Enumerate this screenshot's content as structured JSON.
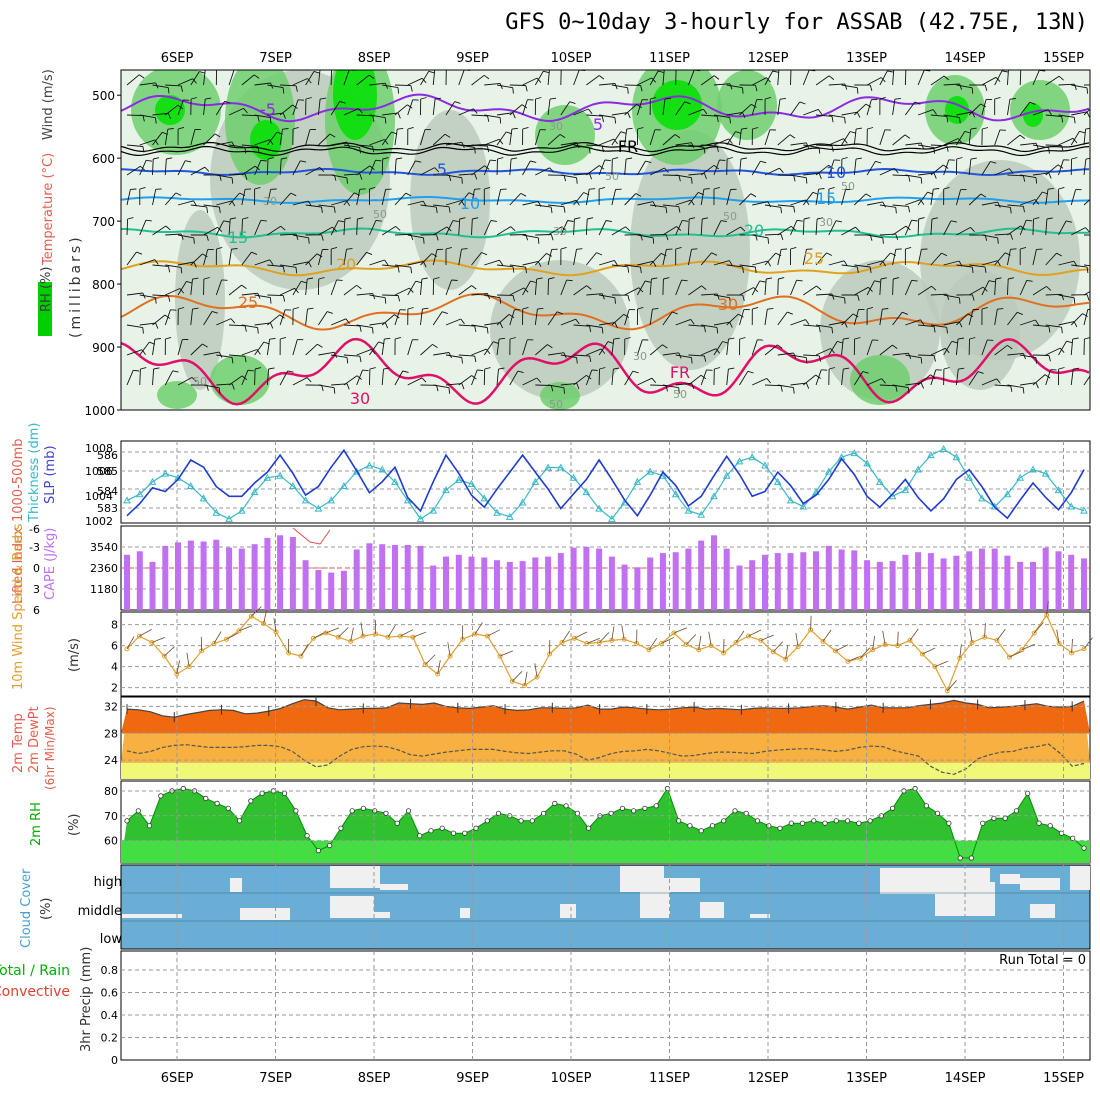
{
  "title": "GFS 0~10day 3-hourly for ASSAB (42.75E, 13N)",
  "date_labels": [
    "6SEP",
    "7SEP",
    "8SEP",
    "9SEP",
    "10SEP",
    "11SEP",
    "12SEP",
    "13SEP",
    "14SEP",
    "15SEP"
  ],
  "colors": {
    "rh_green_dark": "#00e000",
    "rh_green": "#6fcf6f",
    "rh_green_light": "#e8f3e8",
    "rh_grey": "#bccabc",
    "temp_purple": "#8a2be2",
    "temp_blue": "#2255dd",
    "temp_cyan": "#1ea0f0",
    "temp_teal": "#20c090",
    "temp_orange": "#e0a020",
    "temp_orange_dark": "#e07020",
    "temp_magenta": "#e0106a",
    "slp_blue": "#1e3cd0",
    "thickness_cyan": "#38b8c8",
    "cape_purple": "#c070f0",
    "wind_orange": "#e0a030",
    "temp_fill": "#f06810",
    "dewpt_fill": "#f8b040",
    "low_fill": "#f0f878",
    "rh2m_green": "#00d000",
    "cloud_blue": "#6aaed6",
    "cloud_white": "#f0f0f0"
  },
  "chart_data": [
    {
      "type": "heatmap",
      "name_labels": {
        "rh": "RH (%)",
        "temperature": "Temperature (°C)",
        "wind": "Wind (m/s)",
        "unit": "(millibars)"
      },
      "yticks": [
        500,
        600,
        700,
        800,
        900,
        1000
      ],
      "isotherm_labels": [
        "-5",
        "5",
        "5",
        "10",
        "10",
        "15",
        "15",
        "20",
        "20",
        "25",
        "25",
        "30",
        "30",
        "FR",
        "FR"
      ],
      "rh_labels": [
        "50",
        "30",
        "30",
        "50",
        "50",
        "30",
        "30",
        "50",
        "50",
        "50",
        "50",
        "30"
      ]
    },
    {
      "type": "line",
      "name_labels": {
        "thickness": "Thickness (dm)",
        "thickness_top": "1000-500mb",
        "slp": "SLP (mb)"
      },
      "left_ticks": [
        "586",
        "585",
        "584",
        "583"
      ],
      "right_ticks": [
        "1008",
        "1006",
        "1004",
        "1002"
      ],
      "thickness": [
        583.9,
        584.2,
        584.8,
        585.2,
        585.0,
        584.6,
        584.0,
        583.3,
        583.0,
        583.4,
        584.3,
        585.0,
        585.1,
        584.6,
        583.9,
        583.5,
        583.9,
        584.6,
        585.3,
        585.6,
        585.4,
        584.8,
        583.9,
        583.0,
        583.4,
        584.4,
        584.9,
        584.7,
        584.0,
        583.3,
        583.1,
        583.8,
        584.8,
        585.5,
        585.5,
        585.0,
        584.3,
        583.5,
        583.0,
        583.8,
        584.8,
        585.3,
        585.1,
        584.2,
        583.4,
        583.2,
        584.1,
        585.1,
        585.8,
        586.0,
        585.6,
        584.8,
        583.9,
        583.6,
        584.3,
        585.3,
        586.0,
        586.2,
        585.7,
        584.8,
        584.1,
        584.4,
        585.4,
        586.1,
        586.4,
        586.0,
        585.0,
        584.0,
        583.6,
        584.2,
        585.0,
        585.4,
        585.2,
        584.4,
        583.6,
        583.4
      ],
      "slp": [
        1002.6,
        1003.6,
        1004.9,
        1004.6,
        1005.6,
        1007.2,
        1006.6,
        1005.0,
        1004.2,
        1004.2,
        1005.3,
        1006.2,
        1007.6,
        1006.1,
        1004.3,
        1005.0,
        1006.6,
        1008.0,
        1006.3,
        1004.5,
        1005.4,
        1006.6,
        1004.1,
        1003.0,
        1005.4,
        1007.6,
        1006.1,
        1004.3,
        1003.3,
        1004.8,
        1006.2,
        1007.6,
        1006.2,
        1004.8,
        1003.2,
        1004.4,
        1005.6,
        1007.2,
        1005.6,
        1003.9,
        1002.6,
        1004.3,
        1006.2,
        1005.1,
        1003.4,
        1004.2,
        1005.9,
        1007.5,
        1006.0,
        1004.2,
        1004.6,
        1006.2,
        1005.1,
        1003.6,
        1004.3,
        1005.6,
        1007.3,
        1006.0,
        1004.2,
        1003.3,
        1004.4,
        1005.6,
        1004.1,
        1003.0,
        1004.0,
        1005.6,
        1006.4,
        1005.0,
        1003.3,
        1002.4,
        1003.9,
        1005.3,
        1004.1,
        1003.1,
        1004.5,
        1006.4
      ]
    },
    {
      "type": "bar",
      "name_labels": {
        "li": "Lifted Index",
        "cape": "CAPE (J/kg)"
      },
      "left_ticks": [
        "-6",
        "-3",
        "0",
        "3",
        "6"
      ],
      "right_ticks": [
        "3540",
        "2360",
        "1180"
      ],
      "cape": [
        3100,
        3300,
        2700,
        3600,
        3800,
        3900,
        3850,
        3950,
        3500,
        3450,
        3700,
        4050,
        4200,
        4100,
        2800,
        2250,
        2100,
        2200,
        3400,
        3750,
        3700,
        3650,
        3650,
        3600,
        2500,
        3000,
        3100,
        3000,
        2950,
        2800,
        2700,
        2750,
        2950,
        3000,
        3200,
        3500,
        3550,
        3450,
        3000,
        2550,
        2400,
        2950,
        3200,
        3250,
        3450,
        3900,
        4200,
        3450,
        2500,
        2800,
        3100,
        3200,
        3200,
        3250,
        3300,
        3600,
        3400,
        3350,
        2800,
        2700,
        2750,
        3100,
        3250,
        3200,
        2900,
        3050,
        3300,
        3450,
        3450,
        3050,
        2700,
        2700,
        3500,
        3300,
        3100,
        2900
      ]
    },
    {
      "type": "line",
      "name_labels": {
        "wind": "10m Wind Speed & Barbs",
        "unit": "(m/s)"
      },
      "yticks": [
        2,
        4,
        6,
        8
      ],
      "speed": [
        5.7,
        6.9,
        6.3,
        5.0,
        3.3,
        4.0,
        5.5,
        6.2,
        6.6,
        7.4,
        8.8,
        8.1,
        7.3,
        5.3,
        5.0,
        6.7,
        7.2,
        6.8,
        6.4,
        6.9,
        7.1,
        6.8,
        6.9,
        6.8,
        4.2,
        3.3,
        5.0,
        6.6,
        7.1,
        6.9,
        5.0,
        2.6,
        2.2,
        3.0,
        5.2,
        6.3,
        6.7,
        6.2,
        6.3,
        6.5,
        6.6,
        6.2,
        5.6,
        6.2,
        7.2,
        6.1,
        5.6,
        6.0,
        5.3,
        6.3,
        6.9,
        6.5,
        5.4,
        4.7,
        5.9,
        7.5,
        6.4,
        5.5,
        4.5,
        4.8,
        5.6,
        6.1,
        6.0,
        6.5,
        5.2,
        4.0,
        1.7,
        4.8,
        6.3,
        6.8,
        6.5,
        4.9,
        5.6,
        7.2,
        8.9,
        6.2,
        5.3,
        5.7
      ]
    },
    {
      "type": "area",
      "name_labels": {
        "temp": "2m Temp",
        "dewpt": "2m DewPt",
        "minmax": "(6hr Min/Max)"
      },
      "yticks": [
        24,
        28,
        32
      ],
      "temp": [
        31.6,
        31.5,
        31.2,
        30.6,
        30.4,
        30.8,
        31.1,
        31.4,
        31.5,
        31.4,
        30.9,
        31.0,
        31.3,
        31.7,
        32.4,
        33.0,
        32.8,
        31.8,
        31.5,
        31.6,
        31.7,
        31.7,
        31.8,
        32.5,
        32.4,
        32.3,
        32.5,
        32.0,
        31.8,
        31.7,
        31.9,
        32.1,
        31.6,
        31.4,
        31.5,
        31.8,
        31.8,
        31.7,
        31.8,
        32.2,
        31.6,
        31.6,
        31.9,
        31.8,
        31.6,
        31.5,
        31.6,
        31.8,
        31.9,
        31.6,
        31.7,
        31.6,
        31.5,
        31.7,
        31.8,
        31.7,
        31.7,
        31.8,
        32.0,
        32.1,
        31.9,
        31.6,
        31.9,
        32.2,
        31.8,
        31.8,
        31.8,
        32.1,
        32.3,
        32.5,
        32.9,
        32.5,
        32.3,
        31.8,
        31.9,
        32.0,
        32.2,
        32.4,
        32.0,
        31.9,
        32.0,
        32.8
      ],
      "dewpt": [
        25.4,
        25.0,
        25.3,
        25.9,
        26.2,
        26.3,
        26.1,
        25.9,
        25.9,
        25.9,
        26.0,
        26.2,
        26.2,
        26.0,
        25.3,
        24.0,
        23.0,
        23.3,
        24.6,
        25.6,
        26.0,
        26.1,
        26.0,
        25.5,
        24.8,
        24.6,
        24.9,
        25.2,
        25.4,
        25.6,
        25.6,
        25.6,
        25.3,
        25.1,
        25.0,
        25.2,
        25.4,
        25.4,
        24.9,
        24.0,
        24.4,
        25.0,
        25.3,
        25.4,
        25.6,
        25.4,
        25.0,
        24.6,
        24.7,
        25.0,
        25.2,
        25.2,
        25.1,
        25.0,
        25.3,
        25.5,
        25.6,
        25.7,
        25.7,
        25.5,
        25.3,
        25.5,
        25.9,
        26.1,
        26.0,
        25.4,
        25.0,
        24.6,
        23.1,
        22.2,
        21.9,
        22.7,
        24.2,
        24.8,
        25.2,
        25.3,
        25.8,
        26.0,
        26.4,
        25.0,
        23.1,
        23.5
      ]
    },
    {
      "type": "area",
      "name_labels": {
        "rh": "2m RH",
        "unit": "(%)"
      },
      "yticks": [
        60,
        70,
        80
      ],
      "rh": [
        68,
        72,
        66,
        78,
        80,
        81,
        80,
        77,
        75,
        73,
        68,
        76,
        79,
        80,
        79,
        72,
        62,
        56,
        58,
        65,
        72,
        73,
        72,
        71,
        67,
        72,
        62,
        64,
        65,
        63,
        63,
        65,
        68,
        71,
        70,
        68,
        68,
        71,
        75,
        74,
        71,
        65,
        70,
        71,
        73,
        72,
        73,
        74,
        81,
        68,
        66,
        64,
        66,
        68,
        72,
        71,
        68,
        66,
        65,
        67,
        67,
        68,
        67,
        68,
        68,
        67,
        68,
        70,
        73,
        80,
        81,
        74,
        71,
        67,
        53,
        53,
        67,
        69,
        69,
        72,
        79,
        67,
        66,
        63,
        61,
        57
      ]
    },
    {
      "type": "heatmap",
      "name_labels": {
        "cloud": "Cloud Cover",
        "unit": "(%)"
      },
      "yticks": [
        "high",
        "middle",
        "low"
      ]
    },
    {
      "type": "bar",
      "name_labels": {
        "precip": "3hr Precip (mm)",
        "total_rain": "Total / Rain",
        "convective": "Convective"
      },
      "run_total": "Run Total = 0",
      "yticks": [
        "0",
        "0.2",
        "0.4",
        "0.6",
        "0.8"
      ],
      "values": []
    }
  ]
}
